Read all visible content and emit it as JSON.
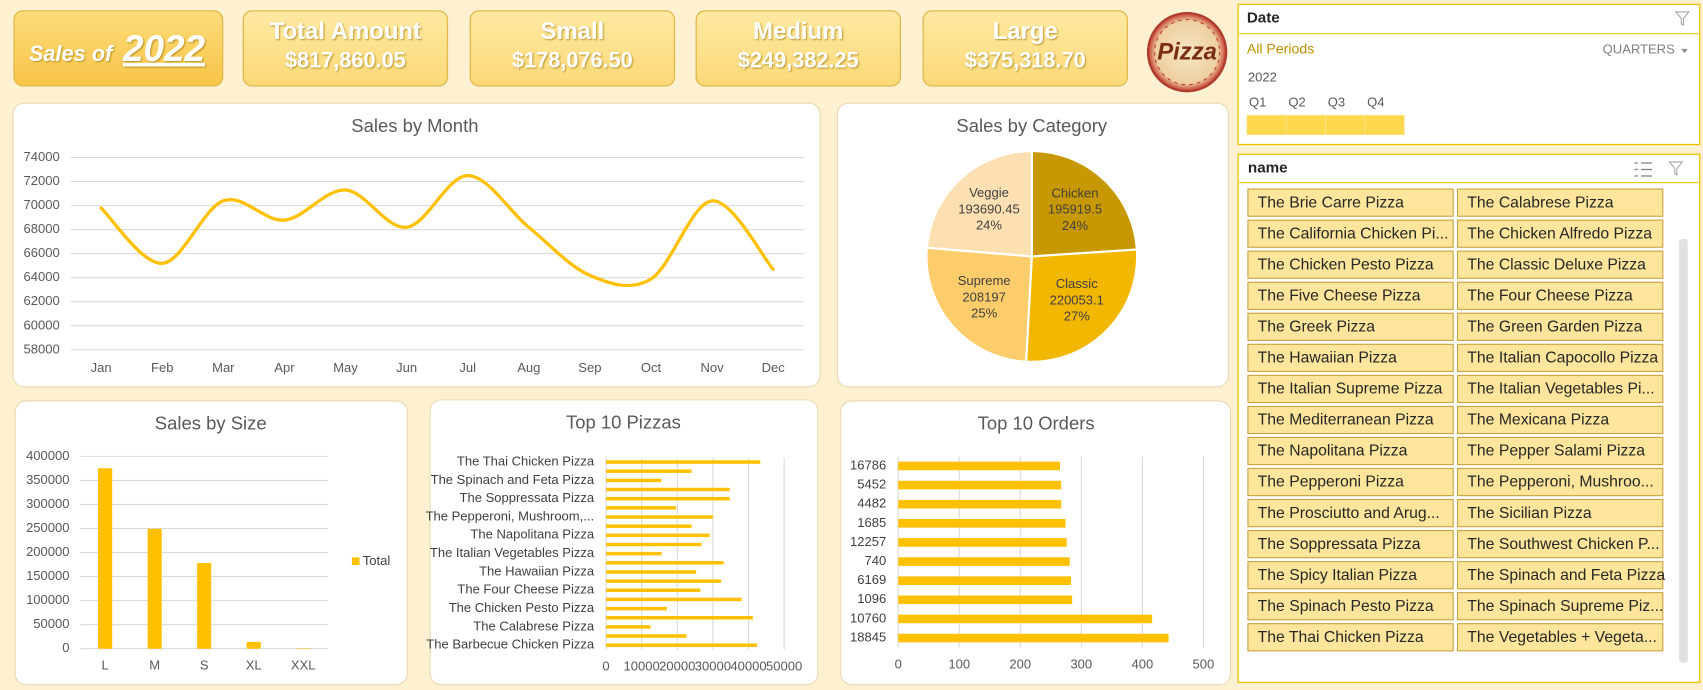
{
  "header": {
    "title_prefix": "Sales of",
    "title_year": "2022"
  },
  "kpis": [
    {
      "label": "Total Amount",
      "value": "$817,860.05"
    },
    {
      "label": "Small",
      "value": "$178,076.50"
    },
    {
      "label": "Medium",
      "value": "$249,382.25"
    },
    {
      "label": "Large",
      "value": "$375,318.70"
    }
  ],
  "logo": "Pizza",
  "chart_data": [
    {
      "type": "line",
      "title": "Sales by Month",
      "categories": [
        "Jan",
        "Feb",
        "Mar",
        "Apr",
        "May",
        "Jun",
        "Jul",
        "Aug",
        "Sep",
        "Oct",
        "Nov",
        "Dec"
      ],
      "values": [
        69800,
        65200,
        70400,
        68800,
        71300,
        68200,
        72500,
        68200,
        64200,
        63900,
        70400,
        64700
      ],
      "color": "#ffc000",
      "smooth": true,
      "ylim": [
        58000,
        74000
      ],
      "yticks": [
        58000,
        60000,
        62000,
        64000,
        66000,
        68000,
        70000,
        72000,
        74000
      ],
      "grid": true
    },
    {
      "type": "pie",
      "title": "Sales by Category",
      "categories": [
        "Chicken",
        "Classic",
        "Supreme",
        "Veggie"
      ],
      "values": [
        195919.5,
        220053.1,
        208197,
        193690.45
      ],
      "percent_labels": [
        "24%",
        "27%",
        "25%",
        "24%"
      ],
      "colors": [
        "#c89800",
        "#f2b700",
        "#fdcd6c",
        "#fde0b2"
      ]
    },
    {
      "type": "bar",
      "title": "Sales by Size",
      "categories": [
        "L",
        "M",
        "S",
        "XL",
        "XXL"
      ],
      "series": [
        {
          "name": "Total",
          "color": "#ffc000",
          "values": [
            375318.7,
            249382.25,
            178076.5,
            14076,
            1006.6
          ]
        }
      ],
      "ylim": [
        0,
        400000
      ],
      "yticks": [
        0,
        50000,
        100000,
        150000,
        200000,
        250000,
        300000,
        350000,
        400000
      ],
      "grid": true,
      "legend": "right"
    },
    {
      "type": "hbar",
      "title": "Top 10 Pizzas",
      "categories": [
        "The Barbecue Chicken Pizza",
        null,
        "The Calabrese Pizza",
        null,
        "The Chicken Pesto Pizza",
        null,
        "The Four Cheese Pizza",
        null,
        "The Hawaiian Pizza",
        null,
        "The Italian Vegetables Pizza",
        null,
        "The Napolitana Pizza",
        null,
        "The Pepperoni, Mushroom,...",
        null,
        "The Soppressata Pizza",
        null,
        "The Spinach and Feta Pizza",
        null,
        "The Thai Chicken Pizza"
      ],
      "values": [
        42400,
        22600,
        12500,
        41200,
        17100,
        38100,
        26500,
        32300,
        25300,
        33000,
        15600,
        26800,
        29100,
        24000,
        30000,
        19700,
        34700,
        34700,
        15500,
        24000,
        43300
      ],
      "color": "#ffc000",
      "xlim": [
        0,
        50000
      ],
      "xticks": [
        0,
        10000,
        20000,
        30000,
        40000,
        50000
      ],
      "grid": true
    },
    {
      "type": "hbar",
      "title": "Top 10 Orders",
      "categories": [
        "18845",
        "10760",
        "1096",
        "6169",
        "740",
        "12257",
        "1685",
        "4482",
        "5452",
        "16786"
      ],
      "values": [
        443,
        416,
        285,
        283,
        281,
        276,
        274,
        267,
        267,
        265
      ],
      "color": "#ffc000",
      "xlim": [
        0,
        500
      ],
      "xticks": [
        0,
        100,
        200,
        300,
        400,
        500
      ],
      "grid": true
    }
  ],
  "slicers": {
    "date": {
      "title": "Date",
      "selection": "All Periods",
      "level": "QUARTERS",
      "year": "2022",
      "quarters": [
        "Q1",
        "Q2",
        "Q3",
        "Q4"
      ]
    },
    "name": {
      "title": "name",
      "items": [
        "The Brie Carre Pizza",
        "The Calabrese Pizza",
        "The California Chicken Pi...",
        "The Chicken Alfredo Pizza",
        "The Chicken Pesto Pizza",
        "The Classic Deluxe Pizza",
        "The Five Cheese Pizza",
        "The Four Cheese Pizza",
        "The Greek Pizza",
        "The Green Garden Pizza",
        "The Hawaiian Pizza",
        "The Italian Capocollo Pizza",
        "The Italian Supreme Pizza",
        "The Italian Vegetables Pi...",
        "The Mediterranean Pizza",
        "The Mexicana Pizza",
        "The Napolitana Pizza",
        "The Pepper Salami Pizza",
        "The Pepperoni Pizza",
        "The Pepperoni, Mushroo...",
        "The Prosciutto and Arug...",
        "The Sicilian Pizza",
        "The Soppressata Pizza",
        "The Southwest Chicken P...",
        "The Spicy Italian Pizza",
        "The Spinach and Feta Pizza",
        "The Spinach Pesto Pizza",
        "The Spinach Supreme Piz...",
        "The Thai Chicken Pizza",
        "The Vegetables + Vegeta..."
      ]
    }
  }
}
